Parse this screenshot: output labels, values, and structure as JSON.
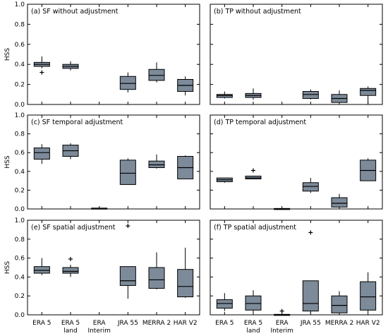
{
  "chart_data": {
    "type": "box",
    "categories": [
      "ERA 5",
      "ERA 5\nland",
      "ERA\nInterim",
      "JRA 55",
      "MERRA 2",
      "HAR V2"
    ],
    "ylim": [
      0,
      1.0
    ],
    "yticks": [
      0,
      0.2,
      0.4,
      0.6,
      0.8,
      1.0
    ],
    "ytick_labels": [
      "0.0",
      "0.2",
      "0.4",
      "0.6",
      "0.8",
      "1.0"
    ],
    "ylabel": "HSS",
    "box_color": "#7c8a99",
    "panels": [
      {
        "title": "(a) SF without adjustment",
        "boxes": [
          {
            "whislo": 0.36,
            "q1": 0.38,
            "med": 0.4,
            "q3": 0.42,
            "whishi": 0.48,
            "fliers": [
              0.32
            ]
          },
          {
            "whislo": 0.34,
            "q1": 0.36,
            "med": 0.38,
            "q3": 0.4,
            "whishi": 0.43,
            "fliers": []
          },
          null,
          {
            "whislo": 0.12,
            "q1": 0.15,
            "med": 0.21,
            "q3": 0.28,
            "whishi": 0.32,
            "fliers": []
          },
          {
            "whislo": 0.22,
            "q1": 0.24,
            "med": 0.29,
            "q3": 0.35,
            "whishi": 0.42,
            "fliers": []
          },
          {
            "whislo": 0.09,
            "q1": 0.13,
            "med": 0.19,
            "q3": 0.25,
            "whishi": 0.28,
            "fliers": []
          }
        ]
      },
      {
        "title": "(b) TP without adjustment",
        "boxes": [
          {
            "whislo": 0.06,
            "q1": 0.07,
            "med": 0.09,
            "q3": 0.1,
            "whishi": 0.13,
            "fliers": []
          },
          {
            "whislo": 0.05,
            "q1": 0.07,
            "med": 0.09,
            "q3": 0.11,
            "whishi": 0.16,
            "fliers": []
          },
          null,
          {
            "whislo": 0.05,
            "q1": 0.06,
            "med": 0.1,
            "q3": 0.13,
            "whishi": 0.15,
            "fliers": []
          },
          {
            "whislo": 0.0,
            "q1": 0.02,
            "med": 0.06,
            "q3": 0.1,
            "whishi": 0.14,
            "fliers": []
          },
          {
            "whislo": 0.01,
            "q1": 0.09,
            "med": 0.14,
            "q3": 0.16,
            "whishi": 0.18,
            "fliers": []
          }
        ]
      },
      {
        "title": "(c) SF temporal adjustment",
        "boxes": [
          {
            "whislo": 0.48,
            "q1": 0.53,
            "med": 0.6,
            "q3": 0.65,
            "whishi": 0.69,
            "fliers": []
          },
          {
            "whislo": 0.53,
            "q1": 0.56,
            "med": 0.62,
            "q3": 0.68,
            "whishi": 0.7,
            "fliers": []
          },
          {
            "whislo": 0.0,
            "q1": 0.003,
            "med": 0.006,
            "q3": 0.009,
            "whishi": 0.012,
            "fliers": []
          },
          {
            "whislo": 0.26,
            "q1": 0.26,
            "med": 0.38,
            "q3": 0.52,
            "whishi": 0.54,
            "fliers": []
          },
          {
            "whislo": 0.43,
            "q1": 0.44,
            "med": 0.47,
            "q3": 0.51,
            "whishi": 0.58,
            "fliers": []
          },
          {
            "whislo": 0.32,
            "q1": 0.32,
            "med": 0.44,
            "q3": 0.56,
            "whishi": 0.57,
            "fliers": []
          }
        ]
      },
      {
        "title": "(d) TP temporal adjustment",
        "boxes": [
          {
            "whislo": 0.28,
            "q1": 0.29,
            "med": 0.31,
            "q3": 0.33,
            "whishi": 0.33,
            "fliers": []
          },
          {
            "whislo": 0.32,
            "q1": 0.32,
            "med": 0.33,
            "q3": 0.35,
            "whishi": 0.35,
            "fliers": [
              0.41
            ]
          },
          {
            "whislo": 0.0,
            "q1": 0.0,
            "med": 0.0,
            "q3": 0.005,
            "whishi": 0.01,
            "fliers": []
          },
          {
            "whislo": 0.17,
            "q1": 0.19,
            "med": 0.24,
            "q3": 0.28,
            "whishi": 0.33,
            "fliers": []
          },
          {
            "whislo": 0.0,
            "q1": 0.02,
            "med": 0.06,
            "q3": 0.12,
            "whishi": 0.16,
            "fliers": []
          },
          {
            "whislo": 0.3,
            "q1": 0.3,
            "med": 0.41,
            "q3": 0.52,
            "whishi": 0.54,
            "fliers": []
          }
        ]
      },
      {
        "title": "(e) SF spatial adjustment",
        "boxes": [
          {
            "whislo": 0.42,
            "q1": 0.44,
            "med": 0.47,
            "q3": 0.51,
            "whishi": 0.6,
            "fliers": []
          },
          {
            "whislo": 0.4,
            "q1": 0.44,
            "med": 0.46,
            "q3": 0.5,
            "whishi": 0.53,
            "fliers": [
              0.59
            ]
          },
          null,
          {
            "whislo": 0.17,
            "q1": 0.31,
            "med": 0.36,
            "q3": 0.51,
            "whishi": 0.51,
            "fliers": [
              0.94
            ]
          },
          {
            "whislo": 0.27,
            "q1": 0.28,
            "med": 0.37,
            "q3": 0.5,
            "whishi": 0.66,
            "fliers": []
          },
          {
            "whislo": 0.18,
            "q1": 0.19,
            "med": 0.3,
            "q3": 0.48,
            "whishi": 0.71,
            "fliers": []
          }
        ]
      },
      {
        "title": "(f) TP spatial adjustment",
        "boxes": [
          {
            "whislo": 0.04,
            "q1": 0.07,
            "med": 0.12,
            "q3": 0.16,
            "whishi": 0.23,
            "fliers": []
          },
          {
            "whislo": 0.03,
            "q1": 0.05,
            "med": 0.12,
            "q3": 0.2,
            "whishi": 0.26,
            "fliers": []
          },
          {
            "whislo": 0.0,
            "q1": 0.0,
            "med": 0.0,
            "q3": 0.005,
            "whishi": 0.01,
            "fliers": [
              0.04
            ]
          },
          {
            "whislo": 0.02,
            "q1": 0.04,
            "med": 0.12,
            "q3": 0.36,
            "whishi": 0.36,
            "fliers": [
              0.87
            ]
          },
          {
            "whislo": 0.0,
            "q1": 0.02,
            "med": 0.1,
            "q3": 0.2,
            "whishi": 0.25,
            "fliers": []
          },
          {
            "whislo": 0.03,
            "q1": 0.05,
            "med": 0.19,
            "q3": 0.35,
            "whishi": 0.45,
            "fliers": []
          }
        ]
      }
    ]
  }
}
